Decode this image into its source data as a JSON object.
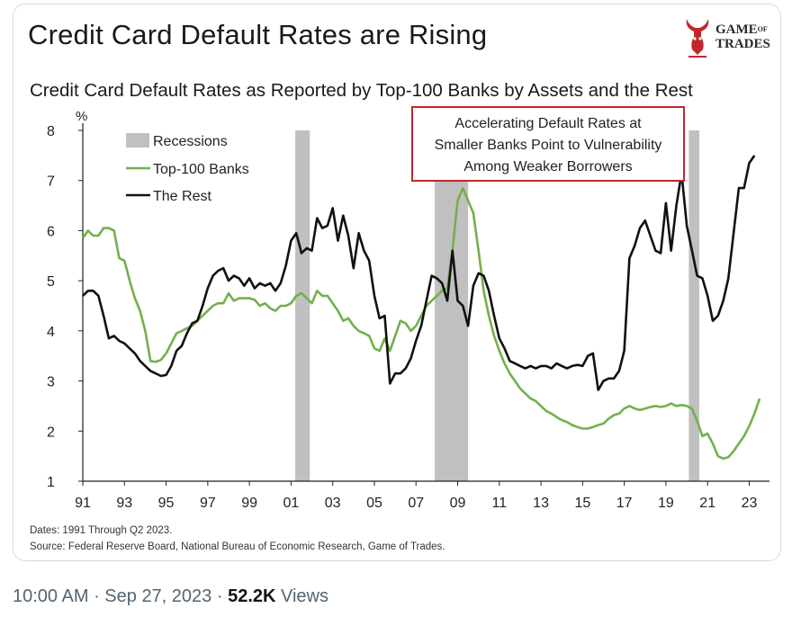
{
  "header": {
    "title": "Credit Card Default Rates are Rising",
    "subtitle": "Credit Card Default Rates as Reported by Top-100 Banks by Assets and the Rest"
  },
  "logo": {
    "line1": "GAME",
    "of": "OF",
    "line2": "TRADES"
  },
  "callout": {
    "lines": [
      "Accelerating Default Rates at",
      "Smaller Banks Point to Vulnerability",
      "Among Weaker Borrowers"
    ],
    "border_color": "#c0282d"
  },
  "source": {
    "dates": "Dates: 1991 Through Q2 2023.",
    "source": "Source: Federal Reserve Board, National Bureau of Economic Research, Game of Trades."
  },
  "footer": {
    "time": "10:00 AM",
    "sep1": " · ",
    "date": "Sep 27, 2023",
    "sep2": " · ",
    "views": "52.2K",
    "views_label": " Views"
  },
  "chart_data": {
    "type": "line",
    "ylabel": "%",
    "ylim": [
      1,
      8
    ],
    "xlim": [
      1991,
      2023.8
    ],
    "yticks": [
      1,
      2,
      3,
      4,
      5,
      6,
      7,
      8
    ],
    "xticks": [
      {
        "value": 1991,
        "label": "91"
      },
      {
        "value": 1993,
        "label": "93"
      },
      {
        "value": 1995,
        "label": "95"
      },
      {
        "value": 1997,
        "label": "97"
      },
      {
        "value": 1999,
        "label": "99"
      },
      {
        "value": 2001,
        "label": "01"
      },
      {
        "value": 2003,
        "label": "03"
      },
      {
        "value": 2005,
        "label": "05"
      },
      {
        "value": 2007,
        "label": "07"
      },
      {
        "value": 2009,
        "label": "09"
      },
      {
        "value": 2011,
        "label": "11"
      },
      {
        "value": 2013,
        "label": "13"
      },
      {
        "value": 2015,
        "label": "15"
      },
      {
        "value": 2017,
        "label": "17"
      },
      {
        "value": 2019,
        "label": "19"
      },
      {
        "value": 2021,
        "label": "21"
      },
      {
        "value": 2023,
        "label": "23"
      }
    ],
    "grid": false,
    "legend_position": "top-left",
    "recessions": {
      "name": "Recessions",
      "color": "#c0c0c0",
      "periods": [
        [
          2001.2,
          2001.9
        ],
        [
          2007.9,
          2009.5
        ],
        [
          2020.1,
          2020.6
        ]
      ]
    },
    "series": [
      {
        "name": "Top-100 Banks",
        "color": "#73b04d",
        "points": [
          [
            1991.0,
            5.85
          ],
          [
            1991.25,
            6.0
          ],
          [
            1991.5,
            5.9
          ],
          [
            1991.75,
            5.9
          ],
          [
            1992.0,
            6.05
          ],
          [
            1992.25,
            6.05
          ],
          [
            1992.5,
            6.0
          ],
          [
            1992.75,
            5.45
          ],
          [
            1993.0,
            5.4
          ],
          [
            1993.25,
            5.0
          ],
          [
            1993.5,
            4.65
          ],
          [
            1993.75,
            4.4
          ],
          [
            1994.0,
            4.0
          ],
          [
            1994.25,
            3.4
          ],
          [
            1994.5,
            3.38
          ],
          [
            1994.75,
            3.42
          ],
          [
            1995.0,
            3.55
          ],
          [
            1995.25,
            3.75
          ],
          [
            1995.5,
            3.95
          ],
          [
            1995.75,
            4.0
          ],
          [
            1996.0,
            4.05
          ],
          [
            1996.25,
            4.1
          ],
          [
            1996.5,
            4.2
          ],
          [
            1996.75,
            4.3
          ],
          [
            1997.0,
            4.4
          ],
          [
            1997.25,
            4.5
          ],
          [
            1997.5,
            4.55
          ],
          [
            1997.75,
            4.55
          ],
          [
            1998.0,
            4.75
          ],
          [
            1998.25,
            4.6
          ],
          [
            1998.5,
            4.65
          ],
          [
            1998.75,
            4.65
          ],
          [
            1999.0,
            4.65
          ],
          [
            1999.25,
            4.62
          ],
          [
            1999.5,
            4.5
          ],
          [
            1999.75,
            4.55
          ],
          [
            2000.0,
            4.45
          ],
          [
            2000.25,
            4.4
          ],
          [
            2000.5,
            4.5
          ],
          [
            2000.75,
            4.5
          ],
          [
            2001.0,
            4.55
          ],
          [
            2001.25,
            4.7
          ],
          [
            2001.5,
            4.75
          ],
          [
            2001.75,
            4.65
          ],
          [
            2002.0,
            4.55
          ],
          [
            2002.25,
            4.8
          ],
          [
            2002.5,
            4.7
          ],
          [
            2002.75,
            4.7
          ],
          [
            2003.0,
            4.55
          ],
          [
            2003.25,
            4.4
          ],
          [
            2003.5,
            4.2
          ],
          [
            2003.75,
            4.25
          ],
          [
            2004.0,
            4.1
          ],
          [
            2004.25,
            4.0
          ],
          [
            2004.5,
            3.95
          ],
          [
            2004.75,
            3.9
          ],
          [
            2005.0,
            3.65
          ],
          [
            2005.25,
            3.6
          ],
          [
            2005.5,
            3.85
          ],
          [
            2005.75,
            3.6
          ],
          [
            2006.0,
            3.9
          ],
          [
            2006.25,
            4.2
          ],
          [
            2006.5,
            4.15
          ],
          [
            2006.75,
            4.0
          ],
          [
            2007.0,
            4.1
          ],
          [
            2007.25,
            4.3
          ],
          [
            2007.5,
            4.5
          ],
          [
            2007.75,
            4.6
          ],
          [
            2008.0,
            4.7
          ],
          [
            2008.25,
            4.8
          ],
          [
            2008.5,
            4.85
          ],
          [
            2008.75,
            5.6
          ],
          [
            2009.0,
            6.6
          ],
          [
            2009.25,
            6.85
          ],
          [
            2009.5,
            6.6
          ],
          [
            2009.75,
            6.35
          ],
          [
            2010.0,
            5.6
          ],
          [
            2010.25,
            4.8
          ],
          [
            2010.5,
            4.3
          ],
          [
            2010.75,
            3.9
          ],
          [
            2011.0,
            3.6
          ],
          [
            2011.25,
            3.35
          ],
          [
            2011.5,
            3.15
          ],
          [
            2011.75,
            3.0
          ],
          [
            2012.0,
            2.85
          ],
          [
            2012.25,
            2.75
          ],
          [
            2012.5,
            2.65
          ],
          [
            2012.75,
            2.6
          ],
          [
            2013.0,
            2.5
          ],
          [
            2013.25,
            2.4
          ],
          [
            2013.5,
            2.35
          ],
          [
            2013.75,
            2.28
          ],
          [
            2014.0,
            2.22
          ],
          [
            2014.25,
            2.18
          ],
          [
            2014.5,
            2.12
          ],
          [
            2014.75,
            2.08
          ],
          [
            2015.0,
            2.05
          ],
          [
            2015.25,
            2.05
          ],
          [
            2015.5,
            2.08
          ],
          [
            2015.75,
            2.12
          ],
          [
            2016.0,
            2.15
          ],
          [
            2016.25,
            2.25
          ],
          [
            2016.5,
            2.32
          ],
          [
            2016.75,
            2.35
          ],
          [
            2017.0,
            2.45
          ],
          [
            2017.25,
            2.5
          ],
          [
            2017.5,
            2.45
          ],
          [
            2017.75,
            2.42
          ],
          [
            2018.0,
            2.45
          ],
          [
            2018.25,
            2.48
          ],
          [
            2018.5,
            2.5
          ],
          [
            2018.75,
            2.48
          ],
          [
            2019.0,
            2.5
          ],
          [
            2019.25,
            2.55
          ],
          [
            2019.5,
            2.5
          ],
          [
            2019.75,
            2.52
          ],
          [
            2020.0,
            2.5
          ],
          [
            2020.25,
            2.45
          ],
          [
            2020.5,
            2.2
          ],
          [
            2020.75,
            1.9
          ],
          [
            2021.0,
            1.95
          ],
          [
            2021.25,
            1.75
          ],
          [
            2021.5,
            1.5
          ],
          [
            2021.75,
            1.45
          ],
          [
            2022.0,
            1.48
          ],
          [
            2022.25,
            1.6
          ],
          [
            2022.5,
            1.75
          ],
          [
            2022.75,
            1.9
          ],
          [
            2023.0,
            2.1
          ],
          [
            2023.25,
            2.35
          ],
          [
            2023.5,
            2.65
          ]
        ]
      },
      {
        "name": "The Rest",
        "color": "#111111",
        "points": [
          [
            1991.0,
            4.7
          ],
          [
            1991.25,
            4.8
          ],
          [
            1991.5,
            4.8
          ],
          [
            1991.75,
            4.7
          ],
          [
            1992.0,
            4.3
          ],
          [
            1992.25,
            3.85
          ],
          [
            1992.5,
            3.9
          ],
          [
            1992.75,
            3.8
          ],
          [
            1993.0,
            3.75
          ],
          [
            1993.25,
            3.65
          ],
          [
            1993.5,
            3.55
          ],
          [
            1993.75,
            3.4
          ],
          [
            1994.0,
            3.3
          ],
          [
            1994.25,
            3.2
          ],
          [
            1994.5,
            3.15
          ],
          [
            1994.75,
            3.1
          ],
          [
            1995.0,
            3.12
          ],
          [
            1995.25,
            3.3
          ],
          [
            1995.5,
            3.6
          ],
          [
            1995.75,
            3.7
          ],
          [
            1996.0,
            3.95
          ],
          [
            1996.25,
            4.15
          ],
          [
            1996.5,
            4.2
          ],
          [
            1996.75,
            4.5
          ],
          [
            1997.0,
            4.85
          ],
          [
            1997.25,
            5.1
          ],
          [
            1997.5,
            5.2
          ],
          [
            1997.75,
            5.25
          ],
          [
            1998.0,
            5.0
          ],
          [
            1998.25,
            5.1
          ],
          [
            1998.5,
            5.05
          ],
          [
            1998.75,
            4.9
          ],
          [
            1999.0,
            5.05
          ],
          [
            1999.25,
            4.85
          ],
          [
            1999.5,
            4.95
          ],
          [
            1999.75,
            4.9
          ],
          [
            2000.0,
            4.95
          ],
          [
            2000.25,
            4.8
          ],
          [
            2000.5,
            4.95
          ],
          [
            2000.75,
            5.3
          ],
          [
            2001.0,
            5.8
          ],
          [
            2001.25,
            5.95
          ],
          [
            2001.5,
            5.55
          ],
          [
            2001.75,
            5.65
          ],
          [
            2002.0,
            5.6
          ],
          [
            2002.25,
            6.25
          ],
          [
            2002.5,
            6.05
          ],
          [
            2002.75,
            6.1
          ],
          [
            2003.0,
            6.45
          ],
          [
            2003.25,
            5.8
          ],
          [
            2003.5,
            6.3
          ],
          [
            2003.75,
            5.9
          ],
          [
            2004.0,
            5.25
          ],
          [
            2004.25,
            5.95
          ],
          [
            2004.5,
            5.6
          ],
          [
            2004.75,
            5.4
          ],
          [
            2005.0,
            4.7
          ],
          [
            2005.25,
            4.25
          ],
          [
            2005.5,
            4.3
          ],
          [
            2005.75,
            2.95
          ],
          [
            2006.0,
            3.15
          ],
          [
            2006.25,
            3.15
          ],
          [
            2006.5,
            3.25
          ],
          [
            2006.75,
            3.45
          ],
          [
            2007.0,
            3.8
          ],
          [
            2007.25,
            4.1
          ],
          [
            2007.5,
            4.6
          ],
          [
            2007.75,
            5.1
          ],
          [
            2008.0,
            5.05
          ],
          [
            2008.25,
            4.95
          ],
          [
            2008.5,
            4.6
          ],
          [
            2008.75,
            5.6
          ],
          [
            2009.0,
            4.6
          ],
          [
            2009.25,
            4.5
          ],
          [
            2009.5,
            4.1
          ],
          [
            2009.75,
            4.9
          ],
          [
            2010.0,
            5.15
          ],
          [
            2010.25,
            5.1
          ],
          [
            2010.5,
            4.8
          ],
          [
            2010.75,
            4.3
          ],
          [
            2011.0,
            3.85
          ],
          [
            2011.25,
            3.65
          ],
          [
            2011.5,
            3.4
          ],
          [
            2011.75,
            3.35
          ],
          [
            2012.0,
            3.3
          ],
          [
            2012.25,
            3.25
          ],
          [
            2012.5,
            3.3
          ],
          [
            2012.75,
            3.25
          ],
          [
            2013.0,
            3.3
          ],
          [
            2013.25,
            3.3
          ],
          [
            2013.5,
            3.25
          ],
          [
            2013.75,
            3.35
          ],
          [
            2014.0,
            3.3
          ],
          [
            2014.25,
            3.25
          ],
          [
            2014.5,
            3.3
          ],
          [
            2014.75,
            3.32
          ],
          [
            2015.0,
            3.3
          ],
          [
            2015.25,
            3.5
          ],
          [
            2015.5,
            3.55
          ],
          [
            2015.75,
            2.82
          ],
          [
            2016.0,
            3.0
          ],
          [
            2016.25,
            3.05
          ],
          [
            2016.5,
            3.05
          ],
          [
            2016.75,
            3.2
          ],
          [
            2017.0,
            3.6
          ],
          [
            2017.25,
            5.45
          ],
          [
            2017.5,
            5.7
          ],
          [
            2017.75,
            6.05
          ],
          [
            2018.0,
            6.2
          ],
          [
            2018.25,
            5.9
          ],
          [
            2018.5,
            5.6
          ],
          [
            2018.75,
            5.55
          ],
          [
            2019.0,
            6.55
          ],
          [
            2019.25,
            5.6
          ],
          [
            2019.5,
            6.5
          ],
          [
            2019.75,
            7.15
          ],
          [
            2020.0,
            6.1
          ],
          [
            2020.25,
            5.6
          ],
          [
            2020.5,
            5.1
          ],
          [
            2020.75,
            5.05
          ],
          [
            2021.0,
            4.7
          ],
          [
            2021.25,
            4.2
          ],
          [
            2021.5,
            4.3
          ],
          [
            2021.75,
            4.6
          ],
          [
            2022.0,
            5.05
          ],
          [
            2022.25,
            5.95
          ],
          [
            2022.5,
            6.85
          ],
          [
            2022.75,
            6.85
          ],
          [
            2023.0,
            7.35
          ],
          [
            2023.25,
            7.5
          ]
        ]
      }
    ]
  }
}
